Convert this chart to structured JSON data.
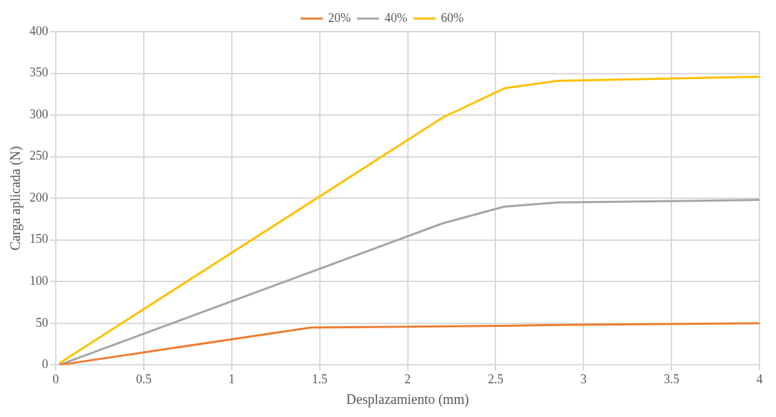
{
  "chart_data": {
    "type": "line",
    "xlabel": "Desplazamiento (mm)",
    "ylabel": "Carga aplicada (N)",
    "xlim": [
      0,
      4
    ],
    "xticks": [
      0,
      0.5,
      1,
      1.5,
      2,
      2.5,
      3,
      3.5,
      4
    ],
    "ylim": [
      0,
      400
    ],
    "yticks": [
      0,
      50,
      100,
      150,
      200,
      250,
      300,
      350,
      400
    ],
    "grid": true,
    "legend": "top",
    "marker": "none",
    "line_style": "solid",
    "series": [
      {
        "name": "20%",
        "color": "#ed7d31",
        "x": [
          0.02,
          1.45,
          2.55,
          2.85,
          4
        ],
        "values": [
          0,
          45,
          47,
          48,
          50
        ]
      },
      {
        "name": "40%",
        "color": "#a5a5a5",
        "x": [
          0.02,
          2.2,
          2.55,
          2.85,
          4
        ],
        "values": [
          0,
          170,
          190,
          195,
          198
        ]
      },
      {
        "name": "60%",
        "color": "#ffc000",
        "x": [
          0.02,
          2.2,
          2.55,
          2.85,
          4
        ],
        "values": [
          2,
          297,
          332,
          341,
          346
        ]
      }
    ]
  }
}
